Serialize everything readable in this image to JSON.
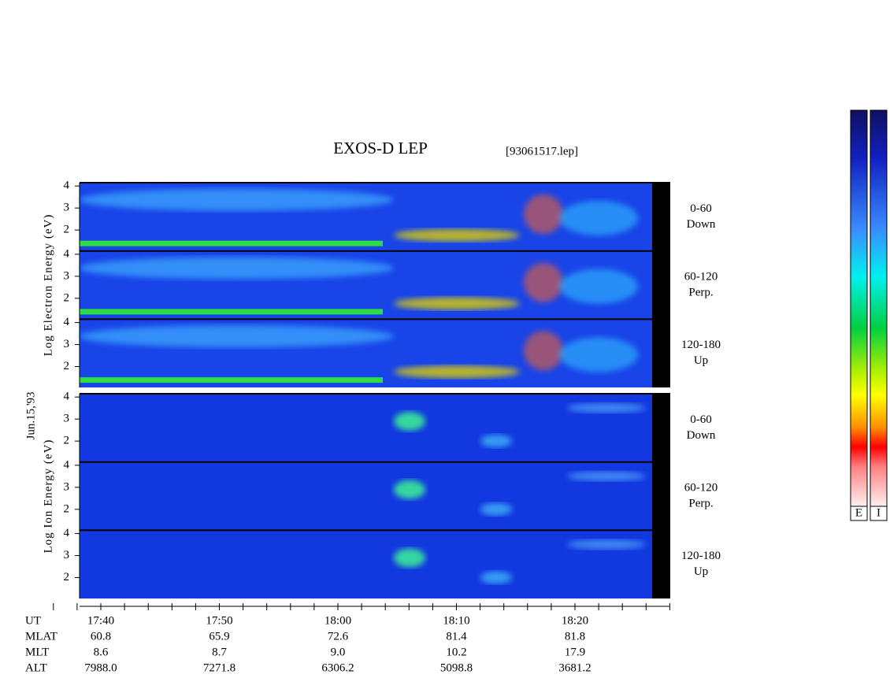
{
  "title": "EXOS-D LEP",
  "file": "[93061517.lep]",
  "date": "Jun.15,'93",
  "groups": [
    {
      "ylabel": "Log Electron Energy (eV)",
      "panels": [
        {
          "angle": "0-60",
          "direction": "Down",
          "ylim": [
            1.05,
            4.15
          ],
          "yticks": [
            2,
            3,
            4
          ]
        },
        {
          "angle": "60-120",
          "direction": "Perp.",
          "ylim": [
            1.05,
            4.15
          ],
          "yticks": [
            2,
            3,
            4
          ]
        },
        {
          "angle": "120-180",
          "direction": "Up",
          "ylim": [
            1.05,
            4.15
          ],
          "yticks": [
            2,
            3,
            4
          ]
        }
      ]
    },
    {
      "ylabel": "Log Ion Energy (eV)",
      "panels": [
        {
          "angle": "0-60",
          "direction": "Down",
          "ylim": [
            1.05,
            4.15
          ],
          "yticks": [
            2,
            3,
            4
          ]
        },
        {
          "angle": "60-120",
          "direction": "Perp.",
          "ylim": [
            1.05,
            4.15
          ],
          "yticks": [
            2,
            3,
            4
          ]
        },
        {
          "angle": "120-180",
          "direction": "Up",
          "ylim": [
            1.05,
            4.15
          ],
          "yticks": [
            2,
            3,
            4
          ]
        }
      ]
    }
  ],
  "time_table": {
    "header": "UT",
    "times": [
      "17:40",
      "17:50",
      "18:00",
      "18:10",
      "18:20"
    ],
    "rows": [
      {
        "label": "MLAT",
        "values": [
          "60.8",
          "65.9",
          "72.6",
          "81.4",
          "81.8"
        ]
      },
      {
        "label": "MLT",
        "values": [
          "8.6",
          "8.7",
          "9.0",
          "10.2",
          "17.9"
        ]
      },
      {
        "label": "ALT",
        "values": [
          "7988.0",
          "7271.8",
          "6306.2",
          "5098.8",
          "3681.2"
        ]
      }
    ]
  },
  "colorbars": [
    "E",
    "I"
  ]
}
